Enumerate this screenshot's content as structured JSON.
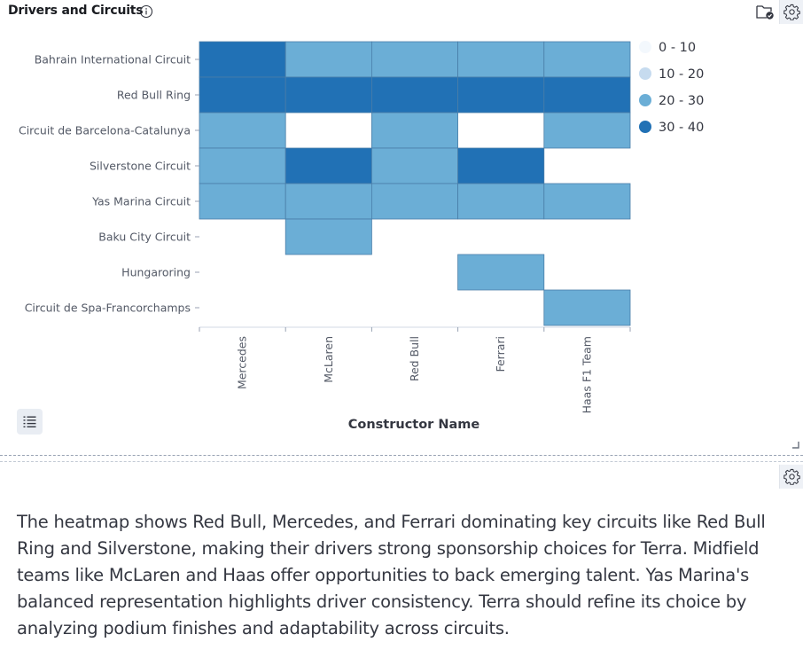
{
  "panel": {
    "title": "Drivers and Circuits"
  },
  "colors": {
    "bin_0_10": "#f3f8fd",
    "bin_10_20": "#c6dbef",
    "bin_20_30": "#6baed6",
    "bin_30_40": "#2171b5",
    "cell_stroke": "#4a7ea8",
    "axis": "#98a2b3",
    "tick_text": "#535966"
  },
  "chart_data": {
    "type": "heatmap",
    "title": "",
    "xlabel": "Constructor Name",
    "ylabel": "",
    "x": [
      "Mercedes",
      "McLaren",
      "Red Bull",
      "Ferrari",
      "Haas F1 Team"
    ],
    "y": [
      "Bahrain International Circuit",
      "Red Bull Ring",
      "Circuit de Barcelona-Catalunya",
      "Silverstone Circuit",
      "Yas Marina Circuit",
      "Baku City Circuit",
      "Hungaroring",
      "Circuit de Spa-Francorchamps"
    ],
    "bins": [
      {
        "label": "0 - 10",
        "min": 0,
        "max": 10
      },
      {
        "label": "10 - 20",
        "min": 10,
        "max": 20
      },
      {
        "label": "20 - 30",
        "min": 20,
        "max": 30
      },
      {
        "label": "30 - 40",
        "min": 30,
        "max": 40
      }
    ],
    "values": [
      [
        35,
        25,
        25,
        25,
        25
      ],
      [
        35,
        35,
        35,
        35,
        35
      ],
      [
        25,
        null,
        25,
        null,
        25
      ],
      [
        25,
        35,
        25,
        35,
        null
      ],
      [
        25,
        25,
        25,
        25,
        25
      ],
      [
        null,
        25,
        null,
        null,
        null
      ],
      [
        null,
        null,
        null,
        25,
        null
      ],
      [
        null,
        null,
        null,
        null,
        25
      ]
    ],
    "legend_position": "top-right"
  },
  "summary": {
    "text": "The heatmap shows Red Bull, Mercedes, and Ferrari dominating key circuits like Red Bull Ring and Silverstone, making their drivers strong sponsorship choices for Terra. Midfield teams like McLaren and Haas offer opportunities to back emerging talent. Yas Marina's balanced representation highlights driver consistency. Terra should refine its choice by analyzing podium finishes and adaptability across circuits."
  }
}
